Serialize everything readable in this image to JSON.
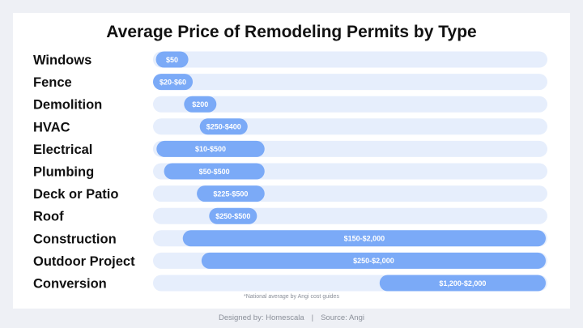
{
  "chart_data": {
    "type": "bar",
    "orientation": "horizontal-range",
    "title": "Average Price of Remodeling Permits by Type",
    "xlim": [
      0,
      2000
    ],
    "categories": [
      "Windows",
      "Fence",
      "Demolition",
      "HVAC",
      "Electrical",
      "Plumbing",
      "Deck or Patio",
      "Roof",
      "Construction",
      "Outdoor Project",
      "Conversion"
    ],
    "ranges": [
      {
        "category": "Windows",
        "low": 50,
        "high": 50,
        "label": "$50"
      },
      {
        "category": "Fence",
        "low": 20,
        "high": 60,
        "label": "$20-$60"
      },
      {
        "category": "Demolition",
        "low": 200,
        "high": 200,
        "label": "$200"
      },
      {
        "category": "HVAC",
        "low": 250,
        "high": 400,
        "label": "$250-$400"
      },
      {
        "category": "Electrical",
        "low": 10,
        "high": 500,
        "label": "$10-$500"
      },
      {
        "category": "Plumbing",
        "low": 50,
        "high": 500,
        "label": "$50-$500"
      },
      {
        "category": "Deck or Patio",
        "low": 225,
        "high": 500,
        "label": "$225-$500"
      },
      {
        "category": "Roof",
        "low": 250,
        "high": 500,
        "label": "$250-$500"
      },
      {
        "category": "Construction",
        "low": 150,
        "high": 2000,
        "label": "$150-$2,000"
      },
      {
        "category": "Outdoor Project",
        "low": 250,
        "high": 2000,
        "label": "$250-$2,000"
      },
      {
        "category": "Conversion",
        "low": 1200,
        "high": 2000,
        "label": "$1,200-$2,000"
      }
    ],
    "track_color": "#e6eefc",
    "bar_color": "#7baaf7",
    "note": "*National average by Angi cost guides",
    "grid": false,
    "legend": "none"
  },
  "footer": {
    "designed_by": "Designed by: Homescala",
    "separator": "|",
    "source": "Source: Angi"
  }
}
